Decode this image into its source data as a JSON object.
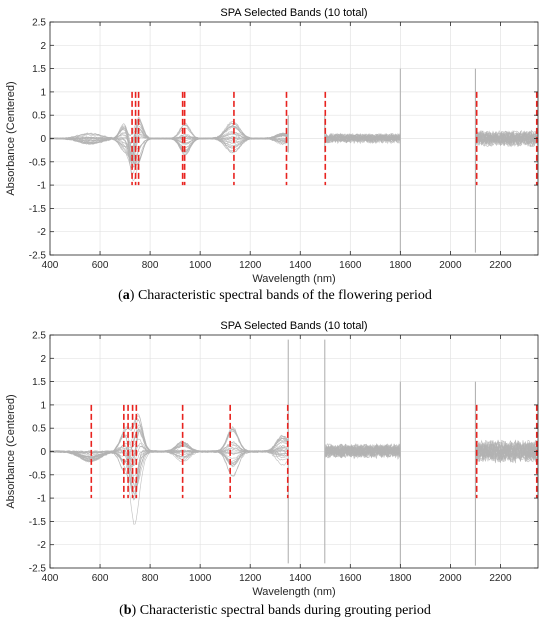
{
  "chart_data": [
    {
      "type": "line",
      "title": "SPA Selected Bands (10 total)",
      "xlabel": "Wavelength (nm)",
      "ylabel": "Absorbance (Centered)",
      "xlim": [
        400,
        2350
      ],
      "ylim": [
        -2.5,
        2.5
      ],
      "xticks": [
        400,
        600,
        800,
        1000,
        1200,
        1400,
        1600,
        1800,
        2000,
        2200
      ],
      "yticks": [
        -2.5,
        -2,
        -1.5,
        -1,
        -0.5,
        0,
        0.5,
        1,
        1.5,
        2,
        2.5
      ],
      "grid": true,
      "series_color": "#b3b3b3",
      "selected_band_color": "#e8231f",
      "selected_band_range": [
        -1,
        1
      ],
      "selected_bands_nm": [
        728,
        742,
        754,
        930,
        938,
        1135,
        1345,
        1500,
        2105,
        2345
      ],
      "caption_label": "a",
      "caption_text": "Characteristic spectral bands of the flowering period"
    },
    {
      "type": "line",
      "title": "SPA Selected Bands (10 total)",
      "xlabel": "Wavelength (nm)",
      "ylabel": "Absorbance (Centered)",
      "xlim": [
        400,
        2350
      ],
      "ylim": [
        -2.5,
        2.5
      ],
      "xticks": [
        400,
        600,
        800,
        1000,
        1200,
        1400,
        1600,
        1800,
        2000,
        2200
      ],
      "yticks": [
        -2.5,
        -2,
        -1.5,
        -1,
        -0.5,
        0,
        0.5,
        1,
        1.5,
        2,
        2.5
      ],
      "grid": true,
      "series_color": "#b3b3b3",
      "selected_band_color": "#e8231f",
      "selected_band_range": [
        -1,
        1
      ],
      "selected_bands_nm": [
        565,
        695,
        712,
        730,
        745,
        930,
        1120,
        1350,
        2105,
        2345
      ],
      "caption_label": "b",
      "caption_text": "Characteristic spectral bands during grouting period"
    }
  ]
}
